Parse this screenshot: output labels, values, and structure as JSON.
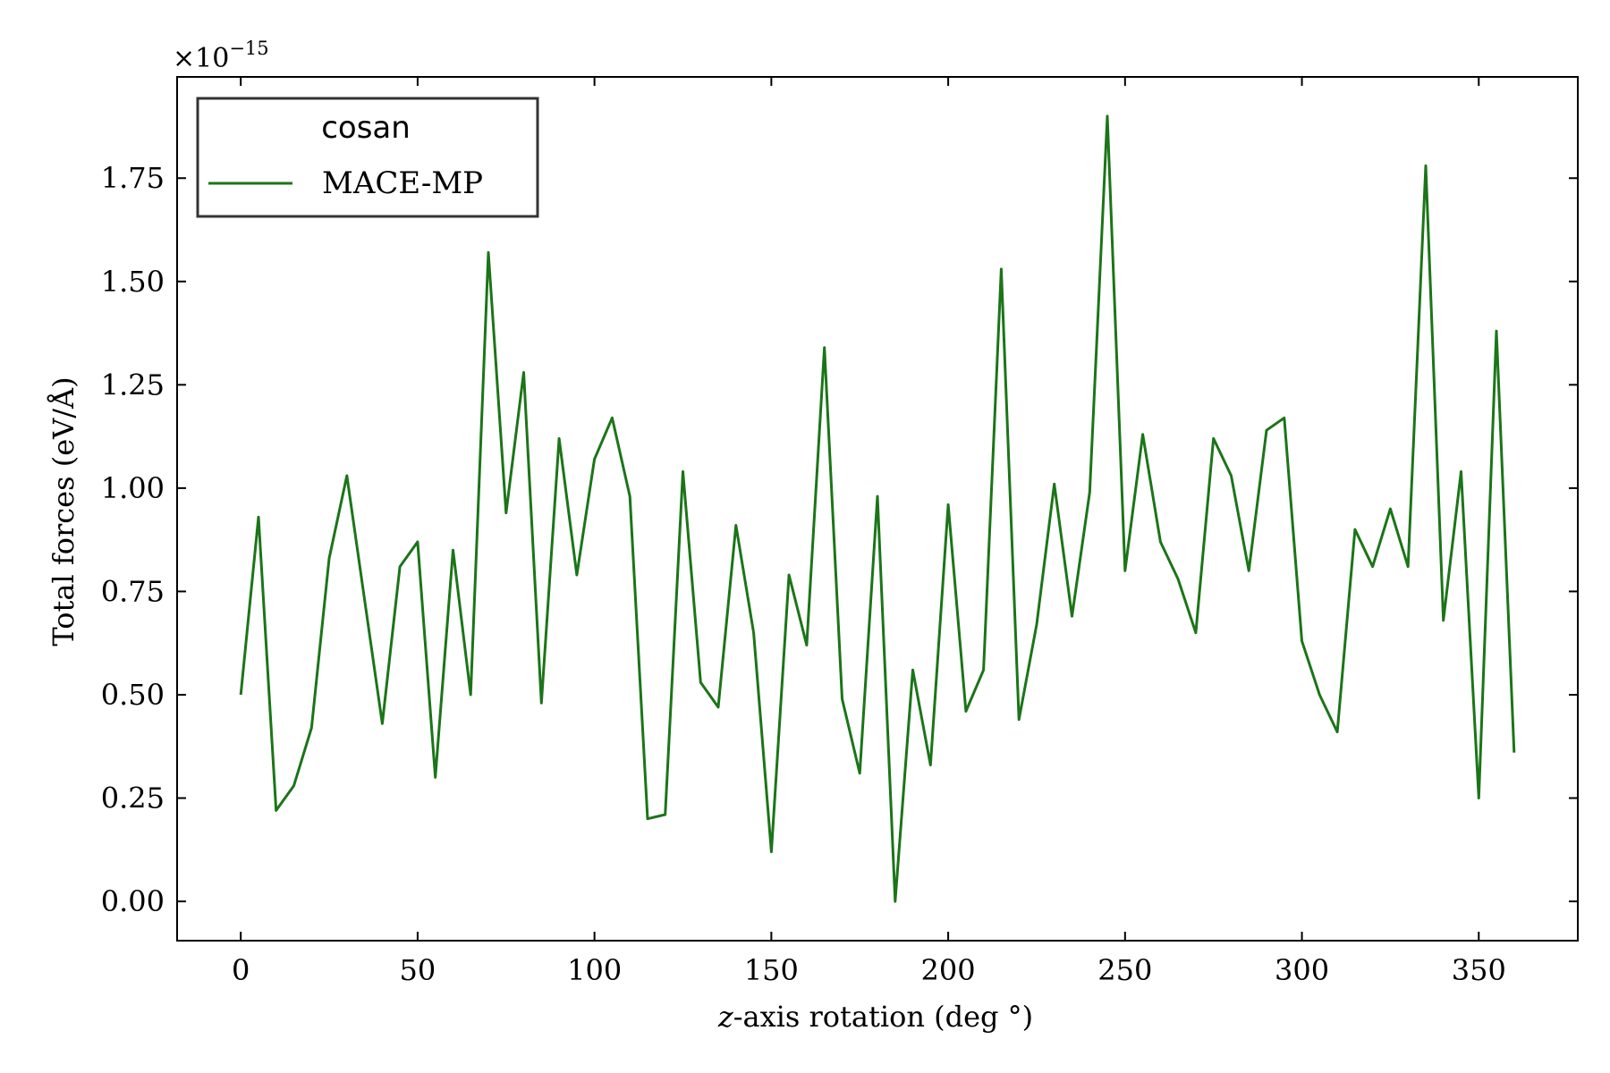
{
  "chart_data": {
    "type": "line",
    "title": "",
    "xlabel": "z-axis rotation (deg °)",
    "xlabel_var": "z",
    "xlabel_rest": "-axis rotation (deg °)",
    "ylabel": "Total forces   (eV/Å)",
    "offset_text_base": "×10",
    "offset_text_exp": "−15",
    "xlim": [
      -18,
      378
    ],
    "ylim": [
      -0.095,
      1.995
    ],
    "xticks": [
      0,
      50,
      100,
      150,
      200,
      250,
      300,
      350
    ],
    "xtick_labels": [
      "0",
      "50",
      "100",
      "150",
      "200",
      "250",
      "300",
      "350"
    ],
    "yticks": [
      0.0,
      0.25,
      0.5,
      0.75,
      1.0,
      1.25,
      1.5,
      1.75
    ],
    "ytick_labels": [
      "0.00",
      "0.25",
      "0.50",
      "0.75",
      "1.00",
      "1.25",
      "1.50",
      "1.75"
    ],
    "grid": false,
    "legend": {
      "placement": "top-left",
      "title": "cosan",
      "entries": [
        "MACE-MP"
      ]
    },
    "series": [
      {
        "name": "MACE-MP",
        "color": "#1b7518",
        "x": [
          0,
          5,
          10,
          15,
          20,
          25,
          30,
          35,
          40,
          45,
          50,
          55,
          60,
          65,
          70,
          75,
          80,
          85,
          90,
          95,
          100,
          105,
          110,
          115,
          120,
          125,
          130,
          135,
          140,
          145,
          150,
          155,
          160,
          165,
          170,
          175,
          180,
          185,
          190,
          195,
          200,
          205,
          210,
          215,
          220,
          225,
          230,
          235,
          240,
          245,
          250,
          255,
          260,
          265,
          270,
          275,
          280,
          285,
          290,
          295,
          300,
          305,
          310,
          315,
          320,
          325,
          330,
          335,
          340,
          345,
          350,
          355,
          360
        ],
        "values": [
          0.5,
          0.93,
          0.22,
          0.28,
          0.42,
          0.83,
          1.03,
          0.73,
          0.43,
          0.81,
          0.87,
          0.3,
          0.85,
          0.5,
          1.57,
          0.94,
          1.28,
          0.48,
          1.12,
          0.79,
          1.07,
          1.17,
          0.98,
          0.2,
          0.21,
          1.04,
          0.53,
          0.47,
          0.91,
          0.65,
          0.12,
          0.79,
          0.62,
          1.34,
          0.49,
          0.31,
          0.98,
          0.0,
          0.56,
          0.33,
          0.96,
          0.46,
          0.56,
          1.53,
          0.44,
          0.67,
          1.01,
          0.69,
          0.99,
          1.9,
          0.8,
          1.13,
          0.87,
          0.78,
          0.65,
          1.12,
          1.03,
          0.8,
          1.14,
          1.17,
          0.63,
          0.5,
          0.41,
          0.9,
          0.81,
          0.95,
          0.81,
          1.78,
          0.68,
          1.04,
          0.25,
          1.38,
          0.36
        ]
      }
    ]
  }
}
